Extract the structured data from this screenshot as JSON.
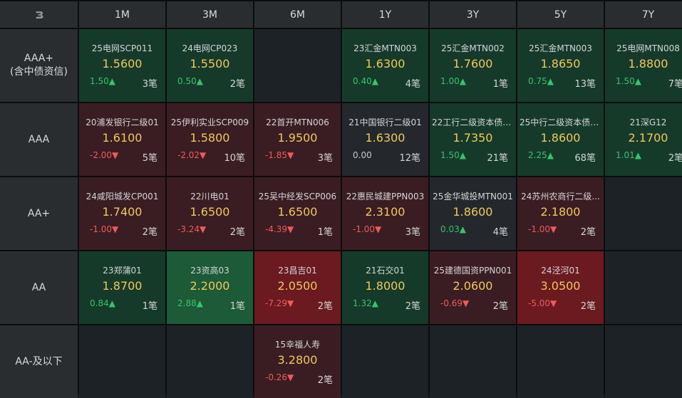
{
  "corner_icon": "B-logo-icon",
  "columns": [
    "1M",
    "3M",
    "6M",
    "1Y",
    "3Y",
    "5Y",
    "7Y"
  ],
  "rows": [
    {
      "label_line1": "AAA+",
      "label_line2": "(含中债资信)"
    },
    {
      "label_line1": "AAA",
      "label_line2": ""
    },
    {
      "label_line1": "AA+",
      "label_line2": ""
    },
    {
      "label_line1": "AA",
      "label_line2": ""
    },
    {
      "label_line1": "AA-及以下",
      "label_line2": ""
    }
  ],
  "cells": [
    [
      {
        "name": "25电网SCP011",
        "price": "1.5600",
        "change": "1.50▲",
        "count": "3笔",
        "style": "green",
        "dir": "up"
      },
      {
        "name": "24电网CP023",
        "price": "1.5500",
        "change": "0.50▲",
        "count": "2笔",
        "style": "green",
        "dir": "up"
      },
      null,
      {
        "name": "23汇金MTN003",
        "price": "1.6300",
        "change": "0.40▲",
        "count": "4笔",
        "style": "green",
        "dir": "up"
      },
      {
        "name": "25汇金MTN002",
        "price": "1.7600",
        "change": "1.00▲",
        "count": "1笔",
        "style": "green",
        "dir": "up"
      },
      {
        "name": "25汇金MTN003",
        "price": "1.8650",
        "change": "0.75▲",
        "count": "13笔",
        "style": "green",
        "dir": "up"
      },
      {
        "name": "25电网MTN008",
        "price": "1.8800",
        "change": "1.50▲",
        "count": "7笔",
        "style": "green",
        "dir": "up"
      }
    ],
    [
      {
        "name": "20浦发银行二级01",
        "price": "1.6100",
        "change": "-2.00▼",
        "count": "5笔",
        "style": "red",
        "dir": "down"
      },
      {
        "name": "25伊利实业SCP009",
        "price": "1.5800",
        "change": "-2.02▼",
        "count": "10笔",
        "style": "red",
        "dir": "down"
      },
      {
        "name": "22首开MTN006",
        "price": "1.9500",
        "change": "-1.85▼",
        "count": "3笔",
        "style": "red",
        "dir": "down"
      },
      {
        "name": "21中国银行二级01",
        "price": "1.6300",
        "change": "0.00",
        "count": "12笔",
        "style": "gray",
        "dir": "flat"
      },
      {
        "name": "22工行二级资本债0...",
        "price": "1.7350",
        "change": "1.50▲",
        "count": "21笔",
        "style": "green",
        "dir": "up"
      },
      {
        "name": "25中行二级资本债0...",
        "price": "1.8600",
        "change": "2.25▲",
        "count": "68笔",
        "style": "green",
        "dir": "up"
      },
      {
        "name": "21深G12",
        "price": "2.1700",
        "change": "1.01▲",
        "count": "2笔",
        "style": "green",
        "dir": "up"
      }
    ],
    [
      {
        "name": "24咸阳城发CP001",
        "price": "1.7400",
        "change": "-1.00▼",
        "count": "2笔",
        "style": "red",
        "dir": "down"
      },
      {
        "name": "22川电01",
        "price": "1.6500",
        "change": "-3.24▼",
        "count": "2笔",
        "style": "red",
        "dir": "down"
      },
      {
        "name": "25吴中经发SCP006",
        "price": "1.6500",
        "change": "-4.39▼",
        "count": "1笔",
        "style": "red",
        "dir": "down"
      },
      {
        "name": "22惠民城建PPN003",
        "price": "2.3100",
        "change": "-1.00▼",
        "count": "3笔",
        "style": "red",
        "dir": "down"
      },
      {
        "name": "25金华城投MTN001",
        "price": "1.8600",
        "change": "0.03▲",
        "count": "4笔",
        "style": "gray",
        "dir": "up"
      },
      {
        "name": "24苏州农商行二级...",
        "price": "2.1800",
        "change": "-1.00▼",
        "count": "2笔",
        "style": "red",
        "dir": "down"
      },
      null
    ],
    [
      {
        "name": "23郑蒲01",
        "price": "1.8700",
        "change": "0.84▲",
        "count": "1笔",
        "style": "green",
        "dir": "up"
      },
      {
        "name": "23资高03",
        "price": "2.2000",
        "change": "2.88▲",
        "count": "1笔",
        "style": "green2",
        "dir": "up"
      },
      {
        "name": "23昌吉01",
        "price": "2.0500",
        "change": "-7.29▼",
        "count": "2笔",
        "style": "red2",
        "dir": "down"
      },
      {
        "name": "21石交01",
        "price": "1.8000",
        "change": "1.32▲",
        "count": "2笔",
        "style": "green",
        "dir": "up"
      },
      {
        "name": "25建德国资PPN001",
        "price": "2.0600",
        "change": "-0.69▼",
        "count": "2笔",
        "style": "red",
        "dir": "down"
      },
      {
        "name": "24泾河01",
        "price": "3.0500",
        "change": "-5.00▼",
        "count": "2笔",
        "style": "red2",
        "dir": "down"
      },
      null
    ],
    [
      null,
      null,
      {
        "name": "15幸福人寿",
        "price": "3.2800",
        "change": "-0.26▼",
        "count": "2笔",
        "style": "red",
        "dir": "down"
      },
      null,
      null,
      null,
      null
    ]
  ],
  "colors": {
    "price": "#f0c95a",
    "up": "#35c46b",
    "down": "#f05a5a",
    "header_bg": "#2a2d30",
    "green_bg": "#163a2a",
    "red_bg": "#3a1d22"
  }
}
